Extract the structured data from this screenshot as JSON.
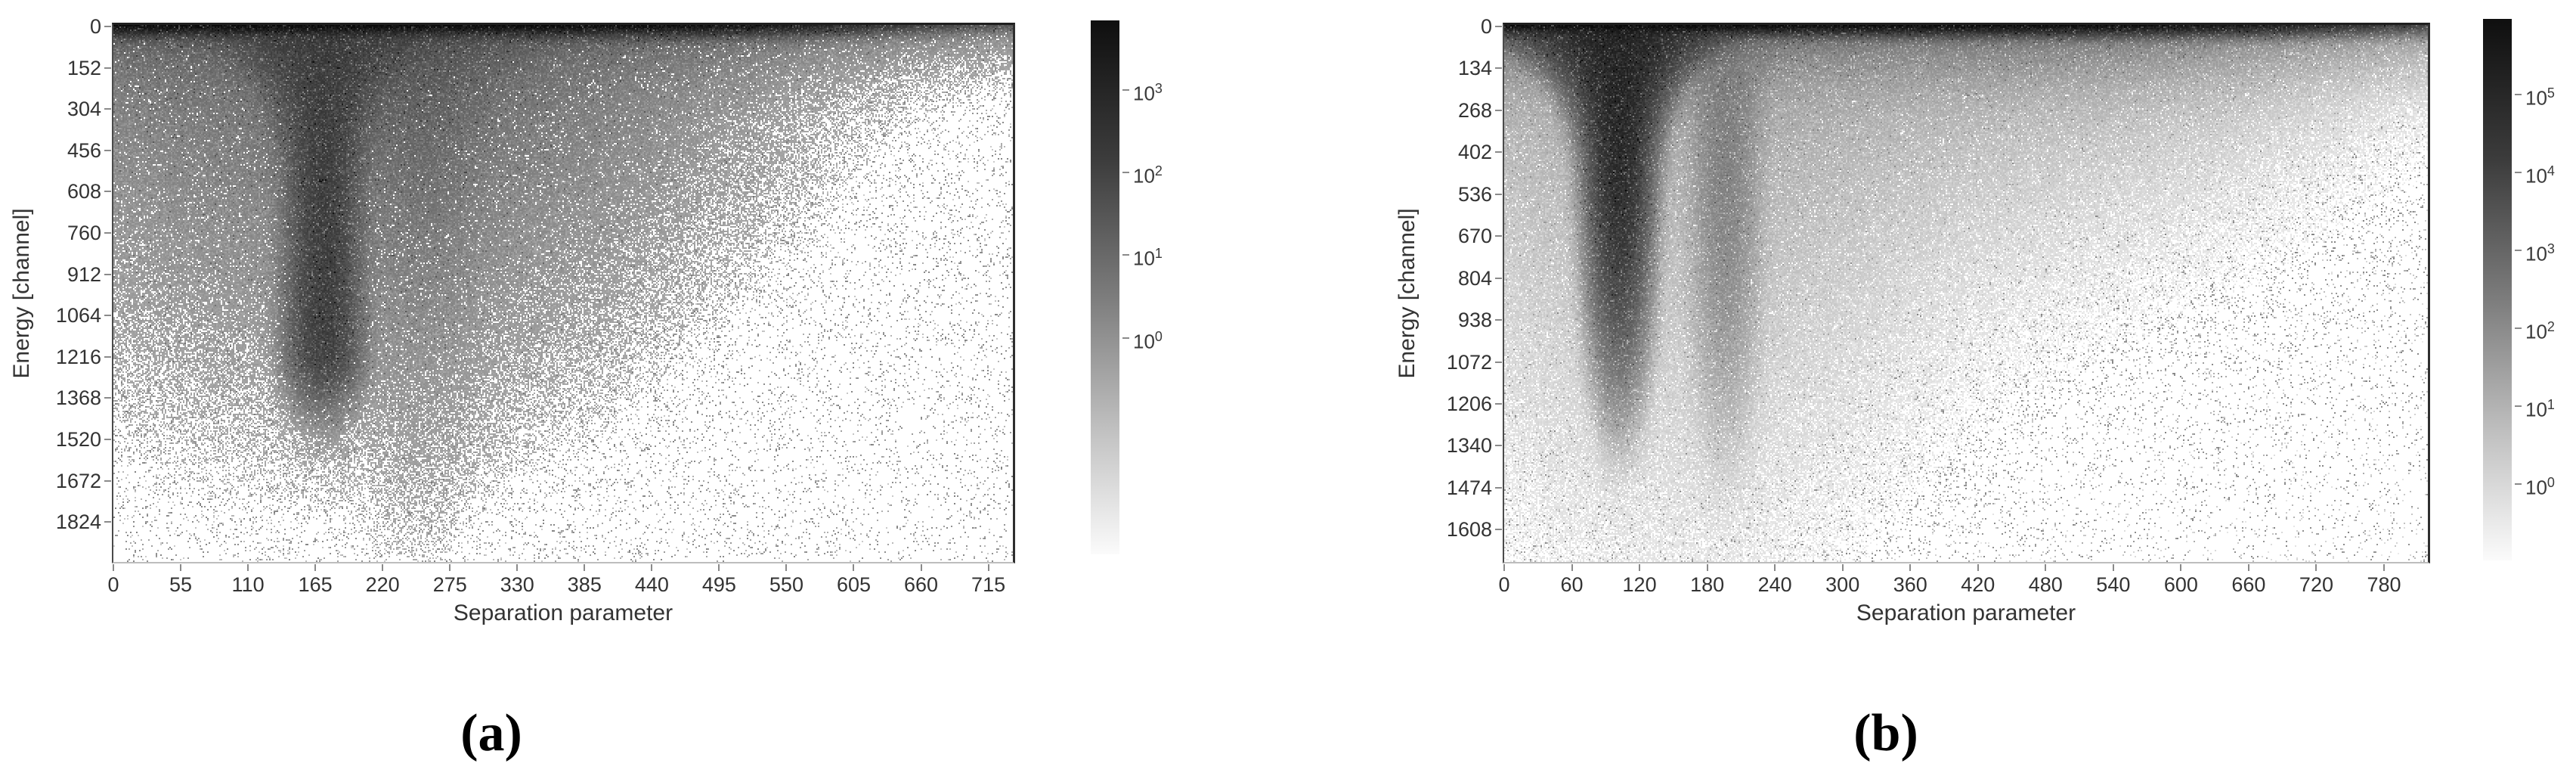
{
  "figure": {
    "captions": {
      "a": "(a)",
      "b": "(b)"
    }
  },
  "chart_data": [
    {
      "type": "heatmap",
      "panel": "a",
      "title": "",
      "xlabel": "Separation parameter",
      "ylabel": "Energy [channel]",
      "x_ticks": [
        0,
        55,
        110,
        165,
        220,
        275,
        330,
        385,
        440,
        495,
        550,
        605,
        660,
        715
      ],
      "y_ticks": [
        0,
        152,
        304,
        456,
        608,
        760,
        912,
        1064,
        1216,
        1368,
        1520,
        1672,
        1824
      ],
      "xlim": [
        0,
        734
      ],
      "ylim": [
        0,
        1972
      ],
      "y_inverted": true,
      "colorscale": "gray_log",
      "colorbar_ticks": [
        "10^3",
        "10^2",
        "10^1",
        "10^0"
      ],
      "colorbar_tick_exponents": [
        3,
        2,
        1,
        0
      ],
      "colorbar_log_range": [
        -2.62,
        3.84
      ],
      "density_model": {
        "seed": 12345,
        "noise": {
          "mult_min": 0.3,
          "mult_span": 2.2,
          "salt_white_p": 0.055,
          "salt_white_factor": 0.04,
          "salt_dark_p": 0.015,
          "salt_dark_factor": 12,
          "dot_threshold": 0.35,
          "dot_prob": 0.5
        },
        "features": [
          {
            "kind": "band",
            "amp": 2500,
            "y_scale": 15,
            "y_pow": 1.2,
            "edge_x": 520,
            "edge_soft": 45,
            "right_frac": 0.001
          },
          {
            "kind": "band",
            "amp": 30,
            "y_scale": 60,
            "y_pow": 1.0,
            "edge_x": 480,
            "edge_soft": 70,
            "right_frac": 0.03
          },
          {
            "kind": "plume",
            "x": 172,
            "amp": 120,
            "w0": 13,
            "w_extra": 45,
            "w_yscale": 150,
            "y_cut": 1270,
            "cut_soft": 45
          },
          {
            "kind": "plume",
            "x": 250,
            "amp": 28,
            "w0": 28,
            "w_extra": 60,
            "w_yscale": 100,
            "y_scale": 300,
            "y_pow": 1.0
          },
          {
            "kind": "cloud",
            "x0": 210,
            "sx": 135,
            "amp": 15,
            "y_scale": 330
          },
          {
            "kind": "bg",
            "amp": 0.4,
            "y_scale": 650,
            "x_scale": 450,
            "floor": 0.07
          }
        ]
      }
    },
    {
      "type": "heatmap",
      "panel": "b",
      "title": "",
      "xlabel": "Separation parameter",
      "ylabel": "Energy [channel]",
      "x_ticks": [
        0,
        60,
        120,
        180,
        240,
        300,
        360,
        420,
        480,
        540,
        600,
        660,
        720,
        780
      ],
      "y_ticks": [
        0,
        134,
        268,
        402,
        536,
        670,
        804,
        938,
        1072,
        1206,
        1340,
        1474,
        1608
      ],
      "xlim": [
        0,
        819
      ],
      "ylim": [
        0,
        1712
      ],
      "y_inverted": true,
      "colorscale": "gray_log",
      "colorbar_ticks": [
        "10^5",
        "10^4",
        "10^3",
        "10^2",
        "10^1",
        "10^0"
      ],
      "colorbar_tick_exponents": [
        5,
        4,
        3,
        2,
        1,
        0
      ],
      "colorbar_log_range": [
        -0.98,
        5.97
      ],
      "density_model": {
        "seed": 67890,
        "noise": {
          "mult_min": 0.3,
          "mult_span": 2.2,
          "salt_white_p": 0.055,
          "salt_white_factor": 0.04,
          "salt_dark_p": 0.015,
          "salt_dark_factor": 12,
          "dot_threshold": 0.35,
          "dot_prob": 0.5
        },
        "features": [
          {
            "kind": "band",
            "amp": 300000,
            "y_scale": 11,
            "y_pow": 1.2,
            "edge_x": 640,
            "edge_soft": 50,
            "right_frac": 0.005
          },
          {
            "kind": "band",
            "amp": 900,
            "y_scale": 45,
            "y_pow": 1.0,
            "edge_x": 560,
            "edge_soft": 80,
            "right_frac": 0.03
          },
          {
            "kind": "band",
            "amp": 22,
            "y_scale": 130,
            "y_pow": 1.0,
            "edge_x": 645,
            "edge_soft": 55,
            "right_frac": 0.0
          },
          {
            "kind": "plume",
            "x": 102,
            "amp": 60000,
            "w0": 10,
            "w_extra": 40,
            "w_yscale": 120,
            "y_scale": 640,
            "y_pow": 3.0
          },
          {
            "kind": "plume",
            "x": 196,
            "amp": 220,
            "w0": 13,
            "w_extra": 42,
            "w_yscale": 85,
            "y_scale": 800,
            "y_pow": 3.0
          },
          {
            "kind": "cloud",
            "x0": 150,
            "sx": 110,
            "amp": 26,
            "y_scale": 360
          },
          {
            "kind": "cloud",
            "x0": 310,
            "sx": 170,
            "amp": 12,
            "y_scale": 230
          },
          {
            "kind": "gauss2",
            "x0": 770,
            "sx": 30,
            "y0": 30,
            "sy": 25,
            "amp": 4
          },
          {
            "kind": "bg",
            "amp": 0.45,
            "y_scale": 750,
            "x_scale": 620,
            "floor": 0.045
          }
        ]
      }
    }
  ]
}
